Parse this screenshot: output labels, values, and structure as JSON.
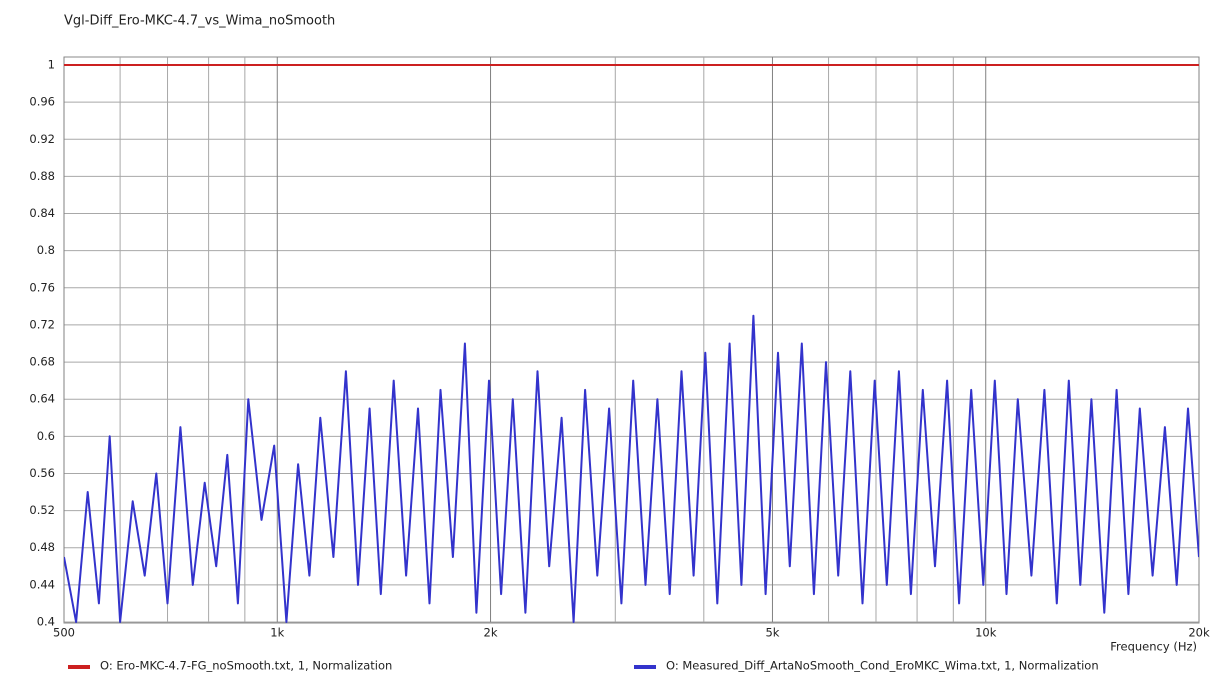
{
  "chart_data": {
    "type": "line",
    "title": "Vgl-Diff_Ero-MKC-4.7_vs_Wima_noSmooth",
    "x_label": "Frequency  (Hz)",
    "x_scale": "log",
    "grid": true,
    "x": [
      500,
      520,
      540,
      560,
      580,
      600,
      625,
      650,
      675,
      700,
      730,
      760,
      790,
      820,
      850,
      880,
      910,
      950,
      990,
      1030,
      1070,
      1110,
      1150,
      1200,
      1250,
      1300,
      1350,
      1400,
      1460,
      1520,
      1580,
      1640,
      1700,
      1770,
      1840,
      1910,
      1990,
      2070,
      2150,
      2240,
      2330,
      2420,
      2520,
      2620,
      2720,
      2830,
      2940,
      3060,
      3180,
      3310,
      3440,
      3580,
      3720,
      3870,
      4020,
      4180,
      4350,
      4520,
      4700,
      4890,
      5090,
      5290,
      5500,
      5720,
      5950,
      6190,
      6440,
      6700,
      6970,
      7250,
      7540,
      7840,
      8150,
      8480,
      8820,
      9170,
      9540,
      9920,
      10300,
      10700,
      11100,
      11600,
      12100,
      12600,
      13100,
      13600,
      14100,
      14700,
      15300,
      15900,
      16500,
      17200,
      17900,
      18600,
      19300,
      20000
    ],
    "series": [
      {
        "name": "O: Ero-MKC-4.7-FG_noSmooth.txt, 1, Normalization",
        "color": "#cc2020",
        "values": [
          1,
          1,
          1,
          1,
          1,
          1,
          1,
          1,
          1,
          1,
          1,
          1,
          1,
          1,
          1,
          1,
          1,
          1,
          1,
          1,
          1,
          1,
          1,
          1,
          1,
          1,
          1,
          1,
          1,
          1,
          1,
          1,
          1,
          1,
          1,
          1,
          1,
          1,
          1,
          1,
          1,
          1,
          1,
          1,
          1,
          1,
          1,
          1,
          1,
          1,
          1,
          1,
          1,
          1,
          1,
          1,
          1,
          1,
          1,
          1,
          1,
          1,
          1,
          1,
          1,
          1,
          1,
          1,
          1,
          1,
          1,
          1,
          1,
          1,
          1,
          1,
          1,
          1,
          1,
          1,
          1,
          1,
          1,
          1,
          1,
          1,
          1,
          1,
          1,
          1,
          1,
          1,
          1,
          1,
          1,
          1
        ]
      },
      {
        "name": "O: Measured_Diff_ArtaNoSmooth_Cond_EroMKC_Wima.txt, 1, Normalization",
        "color": "#3333cc",
        "values": [
          0.47,
          0.4,
          0.54,
          0.42,
          0.6,
          0.4,
          0.53,
          0.45,
          0.56,
          0.42,
          0.61,
          0.44,
          0.55,
          0.46,
          0.58,
          0.42,
          0.64,
          0.51,
          0.59,
          0.4,
          0.57,
          0.45,
          0.62,
          0.47,
          0.67,
          0.44,
          0.63,
          0.43,
          0.66,
          0.45,
          0.63,
          0.42,
          0.65,
          0.47,
          0.7,
          0.41,
          0.66,
          0.43,
          0.64,
          0.41,
          0.67,
          0.46,
          0.62,
          0.4,
          0.65,
          0.45,
          0.63,
          0.42,
          0.66,
          0.44,
          0.64,
          0.43,
          0.67,
          0.45,
          0.69,
          0.42,
          0.7,
          0.44,
          0.73,
          0.43,
          0.69,
          0.46,
          0.7,
          0.43,
          0.68,
          0.45,
          0.67,
          0.42,
          0.66,
          0.44,
          0.67,
          0.43,
          0.65,
          0.46,
          0.66,
          0.42,
          0.65,
          0.44,
          0.66,
          0.43,
          0.64,
          0.45,
          0.65,
          0.42,
          0.66,
          0.44,
          0.64,
          0.41,
          0.65,
          0.43,
          0.63,
          0.45,
          0.61,
          0.44,
          0.63,
          0.47
        ]
      }
    ],
    "xlim": [
      500,
      20000
    ],
    "xticks": [
      500,
      {
        "value": 1000,
        "label": "1k"
      },
      {
        "value": 2000,
        "label": "2k"
      },
      {
        "value": 5000,
        "label": "5k"
      },
      {
        "value": 10000,
        "label": "10k"
      },
      {
        "value": 20000,
        "label": "20k"
      }
    ],
    "x_minor_grid": [
      600,
      700,
      800,
      900,
      3000,
      4000,
      6000,
      7000,
      8000,
      9000
    ],
    "ylim": [
      0.4,
      1
    ],
    "yticks": [
      0.4,
      0.44,
      0.48,
      0.52,
      0.56,
      0.6,
      0.64,
      0.68,
      0.72,
      0.76,
      0.8,
      0.84,
      0.88,
      0.92,
      0.96,
      1
    ]
  }
}
